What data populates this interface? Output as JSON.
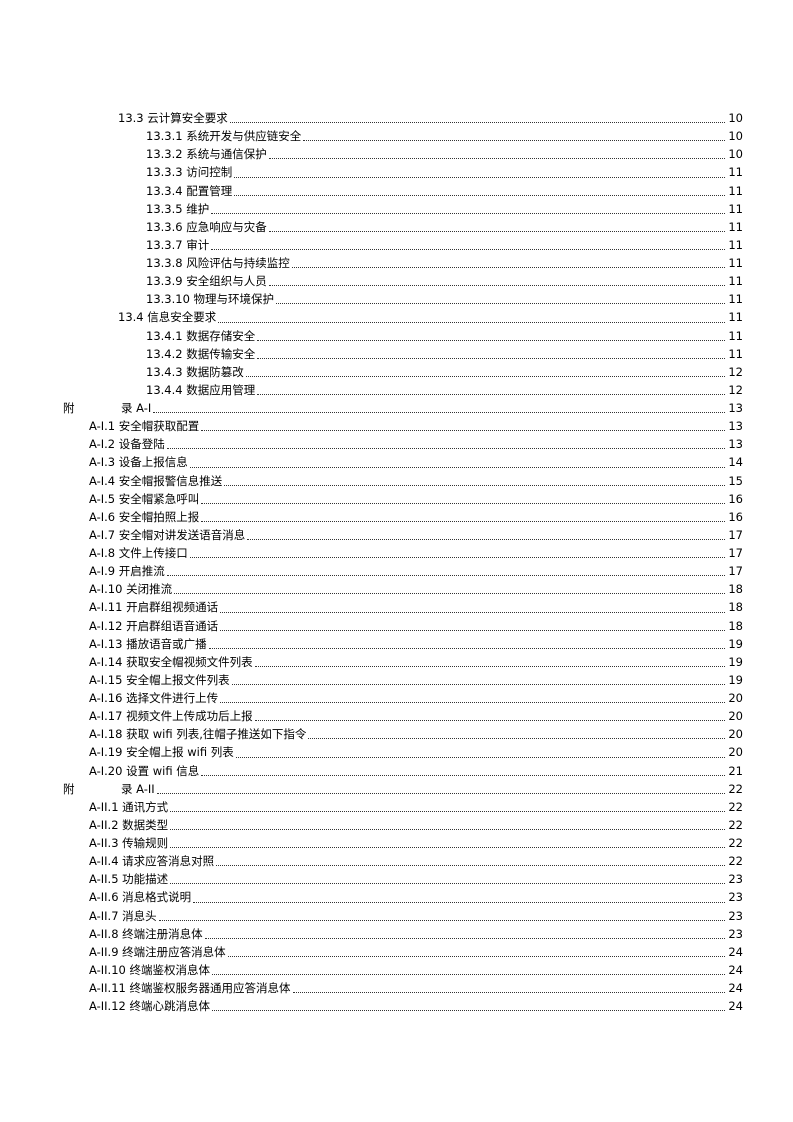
{
  "toc": [
    {
      "level": "l1",
      "label": "13.3 云计算安全要求",
      "page": "10"
    },
    {
      "level": "l2",
      "label": "13.3.1 系统开发与供应链安全",
      "page": "10"
    },
    {
      "level": "l2",
      "label": "13.3.2 系统与通信保护",
      "page": "10"
    },
    {
      "level": "l2",
      "label": "13.3.3 访问控制",
      "page": "11"
    },
    {
      "level": "l2",
      "label": "13.3.4 配置管理",
      "page": "11"
    },
    {
      "level": "l2",
      "label": "13.3.5 维护",
      "page": "11"
    },
    {
      "level": "l2",
      "label": "13.3.6 应急响应与灾备",
      "page": "11"
    },
    {
      "level": "l2",
      "label": "13.3.7 审计",
      "page": "11"
    },
    {
      "level": "l2",
      "label": "13.3.8 风险评估与持续监控",
      "page": "11"
    },
    {
      "level": "l2",
      "label": "13.3.9 安全组织与人员",
      "page": "11"
    },
    {
      "level": "l2",
      "label": "13.3.10 物理与环境保护",
      "page": "11"
    },
    {
      "level": "l1",
      "label": "13.4 信息安全要求",
      "page": "11"
    },
    {
      "level": "l2",
      "label": "13.4.1 数据存储安全",
      "page": "11"
    },
    {
      "level": "l2",
      "label": "13.4.2 数据传输安全",
      "page": "11"
    },
    {
      "level": "l2",
      "label": "13.4.3 数据防篡改",
      "page": "12"
    },
    {
      "level": "l2",
      "label": "13.4.4 数据应用管理",
      "page": "12"
    },
    {
      "level": "ap",
      "prefix": "附",
      "label": "录 A-I",
      "page": "13"
    },
    {
      "level": "ai",
      "label": "A-I.1 安全帽获取配置",
      "page": "13"
    },
    {
      "level": "ai",
      "label": "A-I.2 设备登陆",
      "page": "13"
    },
    {
      "level": "ai",
      "label": "A-I.3 设备上报信息",
      "page": "14"
    },
    {
      "level": "ai",
      "label": "A-I.4 安全帽报警信息推送",
      "page": "15"
    },
    {
      "level": "ai",
      "label": "A-I.5 安全帽紧急呼叫",
      "page": "16"
    },
    {
      "level": "ai",
      "label": "A-I.6 安全帽拍照上报",
      "page": "16"
    },
    {
      "level": "ai",
      "label": "A-I.7 安全帽对讲发送语音消息",
      "page": "17"
    },
    {
      "level": "ai",
      "label": "A-I.8 文件上传接口",
      "page": "17"
    },
    {
      "level": "ai",
      "label": "A-I.9 开启推流",
      "page": "17"
    },
    {
      "level": "ai",
      "label": "A-I.10 关闭推流",
      "page": "18"
    },
    {
      "level": "ai",
      "label": "A-I.11 开启群组视频通话",
      "page": "18"
    },
    {
      "level": "ai",
      "label": "A-I.12 开启群组语音通话",
      "page": "18"
    },
    {
      "level": "ai",
      "label": "A-I.13 播放语音或广播",
      "page": "19"
    },
    {
      "level": "ai",
      "label": "A-I.14 获取安全帽视频文件列表",
      "page": "19"
    },
    {
      "level": "ai",
      "label": "A-I.15 安全帽上报文件列表",
      "page": "19"
    },
    {
      "level": "ai",
      "label": "A-I.16  选择文件进行上传",
      "page": "20"
    },
    {
      "level": "ai",
      "label": "A-I.17  视频文件上传成功后上报",
      "page": "20"
    },
    {
      "level": "ai",
      "label": "A-I.18  获取 wifi 列表,往帽子推送如下指令",
      "page": "20"
    },
    {
      "level": "ai",
      "label": "A-I.19  安全帽上报 wifi 列表",
      "page": "20"
    },
    {
      "level": "ai",
      "label": "A-I.20 设置 wifi 信息",
      "page": "21"
    },
    {
      "level": "ap",
      "prefix": "附",
      "label": "录 A-II",
      "page": "22"
    },
    {
      "level": "ai",
      "label": "A-II.1 通讯方式",
      "page": "22"
    },
    {
      "level": "ai",
      "label": "A-II.2 数据类型",
      "page": "22"
    },
    {
      "level": "ai",
      "label": "A-II.3 传输规则",
      "page": "22"
    },
    {
      "level": "ai",
      "label": "A-II.4 请求应答消息对照",
      "page": "22"
    },
    {
      "level": "ai",
      "label": "A-II.5 功能描述",
      "page": "23"
    },
    {
      "level": "ai",
      "label": "A-II.6 消息格式说明",
      "page": "23"
    },
    {
      "level": "ai",
      "label": "A-II.7 消息头",
      "page": "23"
    },
    {
      "level": "ai",
      "label": "A-II.8 终端注册消息体",
      "page": "23"
    },
    {
      "level": "ai",
      "label": "A-II.9 终端注册应答消息体",
      "page": "24"
    },
    {
      "level": "ai",
      "label": "A-II.10  终端鉴权消息体",
      "page": "24"
    },
    {
      "level": "ai",
      "label": "A-II.11  终端鉴权服务器通用应答消息体",
      "page": "24"
    },
    {
      "level": "ai",
      "label": "A-II.12 终端心跳消息体",
      "page": "24"
    }
  ]
}
